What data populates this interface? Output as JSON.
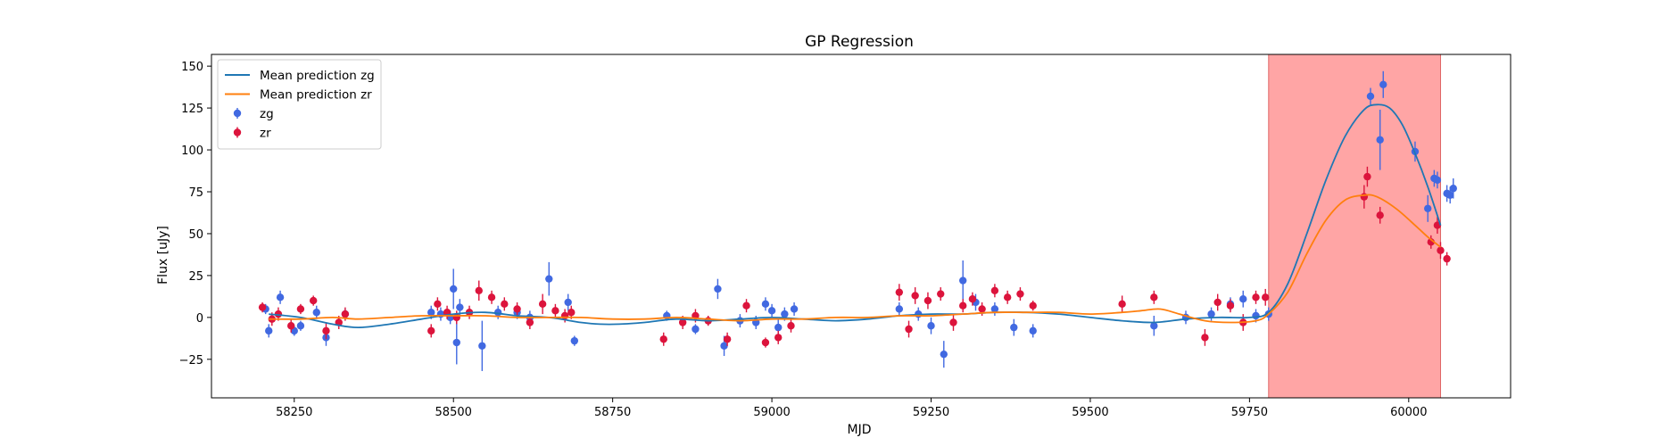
{
  "chart_data": {
    "type": "scatter",
    "title": "GP Regression",
    "xlabel": "MJD",
    "ylabel": "Flux [uJy]",
    "xlim": [
      58120,
      60160
    ],
    "ylim": [
      -48,
      157
    ],
    "xticks": [
      58250,
      58500,
      58750,
      59000,
      59250,
      59500,
      59750,
      60000
    ],
    "yticks": [
      -25,
      0,
      25,
      50,
      75,
      100,
      125,
      150
    ],
    "grid": false,
    "legend_position": "top-left",
    "highlight_region": {
      "x_start": 59780,
      "x_end": 60050,
      "color": "#ff7f7f"
    },
    "series": [
      {
        "name": "Mean prediction zg",
        "kind": "line",
        "color": "#1f77b4",
        "x": [
          58210,
          58260,
          58310,
          58350,
          58400,
          58450,
          58500,
          58550,
          58600,
          58650,
          58700,
          58730,
          58760,
          58800,
          58850,
          58900,
          58950,
          59000,
          59050,
          59100,
          59150,
          59200,
          59250,
          59300,
          59350,
          59400,
          59450,
          59500,
          59550,
          59600,
          59650,
          59700,
          59750,
          59780,
          59810,
          59840,
          59870,
          59900,
          59930,
          59950,
          59970,
          59990,
          60010,
          60030,
          60050
        ],
        "y": [
          2,
          0,
          -4,
          -6,
          -4,
          -1,
          2,
          3,
          1,
          0,
          -3,
          -4,
          -4,
          -3,
          -1,
          -2,
          -1,
          0,
          -1,
          -2,
          -1,
          1,
          2,
          2,
          3,
          3,
          2,
          0,
          -2,
          -3,
          -1,
          0,
          0,
          3,
          20,
          50,
          82,
          108,
          124,
          127,
          125,
          115,
          98,
          78,
          55
        ]
      },
      {
        "name": "Mean prediction zr",
        "kind": "line",
        "color": "#ff7f0e",
        "x": [
          58210,
          58260,
          58310,
          58350,
          58400,
          58450,
          58500,
          58550,
          58600,
          58650,
          58700,
          58750,
          58800,
          58850,
          58900,
          58950,
          59000,
          59050,
          59100,
          59150,
          59200,
          59250,
          59300,
          59350,
          59400,
          59450,
          59500,
          59550,
          59580,
          59610,
          59640,
          59680,
          59720,
          59760,
          59780,
          59810,
          59840,
          59870,
          59900,
          59930,
          59950,
          59980,
          60010,
          60030,
          60050
        ],
        "y": [
          -1,
          -1,
          0,
          -1,
          0,
          1,
          1,
          1,
          0,
          0,
          0,
          -1,
          -1,
          0,
          -1,
          -2,
          -1,
          -1,
          0,
          0,
          1,
          1,
          2,
          3,
          3,
          3,
          2,
          3,
          4,
          5,
          2,
          -2,
          -3,
          -2,
          2,
          15,
          38,
          58,
          70,
          73,
          72,
          65,
          55,
          48,
          42
        ]
      },
      {
        "name": "zg",
        "kind": "errorbar",
        "color": "#4169e1",
        "x": [
          58205,
          58210,
          58228,
          58250,
          58260,
          58285,
          58300,
          58330,
          58465,
          58480,
          58495,
          58500,
          58505,
          58510,
          58545,
          58570,
          58600,
          58620,
          58650,
          58680,
          58690,
          58835,
          58880,
          58915,
          58925,
          58950,
          58975,
          58990,
          59000,
          59010,
          59020,
          59035,
          59200,
          59230,
          59250,
          59270,
          59300,
          59320,
          59350,
          59380,
          59410,
          59600,
          59650,
          59690,
          59720,
          59740,
          59760,
          59780,
          59940,
          59955,
          59960,
          60010,
          60030,
          60040,
          60045,
          60060,
          60065,
          60070
        ],
        "y": [
          5,
          -8,
          12,
          -8,
          -5,
          3,
          -12,
          2,
          3,
          2,
          0,
          17,
          -15,
          6,
          -17,
          3,
          3,
          0,
          23,
          9,
          -14,
          1,
          -7,
          17,
          -17,
          -2,
          -3,
          8,
          4,
          -6,
          2,
          5,
          5,
          2,
          -5,
          -22,
          22,
          9,
          5,
          -6,
          -8,
          -5,
          0,
          2,
          8,
          11,
          1,
          2,
          132,
          106,
          139,
          99,
          65,
          83,
          82,
          74,
          73,
          77
        ],
        "err": [
          3,
          4,
          4,
          3,
          3,
          4,
          5,
          3,
          4,
          4,
          4,
          12,
          13,
          5,
          15,
          4,
          4,
          4,
          10,
          5,
          3,
          3,
          3,
          6,
          6,
          4,
          4,
          4,
          4,
          5,
          4,
          4,
          4,
          4,
          5,
          8,
          12,
          5,
          4,
          5,
          4,
          6,
          4,
          4,
          4,
          5,
          4,
          4,
          5,
          18,
          8,
          6,
          8,
          5,
          5,
          5,
          5,
          6
        ]
      },
      {
        "name": "zr",
        "kind": "errorbar",
        "color": "#dc143c",
        "x": [
          58200,
          58215,
          58225,
          58245,
          58260,
          58280,
          58300,
          58320,
          58330,
          58465,
          58475,
          58490,
          58505,
          58525,
          58540,
          58560,
          58580,
          58600,
          58620,
          58640,
          58660,
          58675,
          58685,
          58830,
          58860,
          58880,
          58900,
          58930,
          58960,
          58990,
          59010,
          59030,
          59200,
          59215,
          59225,
          59245,
          59265,
          59285,
          59300,
          59315,
          59330,
          59350,
          59370,
          59390,
          59410,
          59550,
          59600,
          59680,
          59700,
          59720,
          59740,
          59760,
          59775,
          59930,
          59935,
          59955,
          60035,
          60045,
          60050,
          60060
        ],
        "y": [
          6,
          -1,
          2,
          -5,
          5,
          10,
          -8,
          -3,
          2,
          -8,
          8,
          3,
          0,
          3,
          16,
          12,
          8,
          5,
          -3,
          8,
          4,
          1,
          3,
          -13,
          -3,
          1,
          -2,
          -13,
          7,
          -15,
          -12,
          -5,
          15,
          -7,
          13,
          10,
          14,
          -3,
          7,
          11,
          5,
          16,
          12,
          14,
          7,
          8,
          12,
          -12,
          9,
          7,
          -3,
          12,
          12,
          72,
          84,
          61,
          45,
          55,
          40,
          35
        ],
        "err": [
          3,
          4,
          4,
          4,
          3,
          3,
          5,
          4,
          4,
          4,
          4,
          4,
          4,
          4,
          6,
          4,
          4,
          4,
          4,
          6,
          4,
          4,
          4,
          4,
          4,
          4,
          3,
          4,
          4,
          3,
          4,
          4,
          5,
          5,
          5,
          5,
          4,
          5,
          4,
          4,
          4,
          4,
          4,
          4,
          3,
          5,
          4,
          5,
          5,
          4,
          5,
          4,
          5,
          7,
          6,
          5,
          4,
          5,
          5,
          4
        ]
      }
    ]
  }
}
